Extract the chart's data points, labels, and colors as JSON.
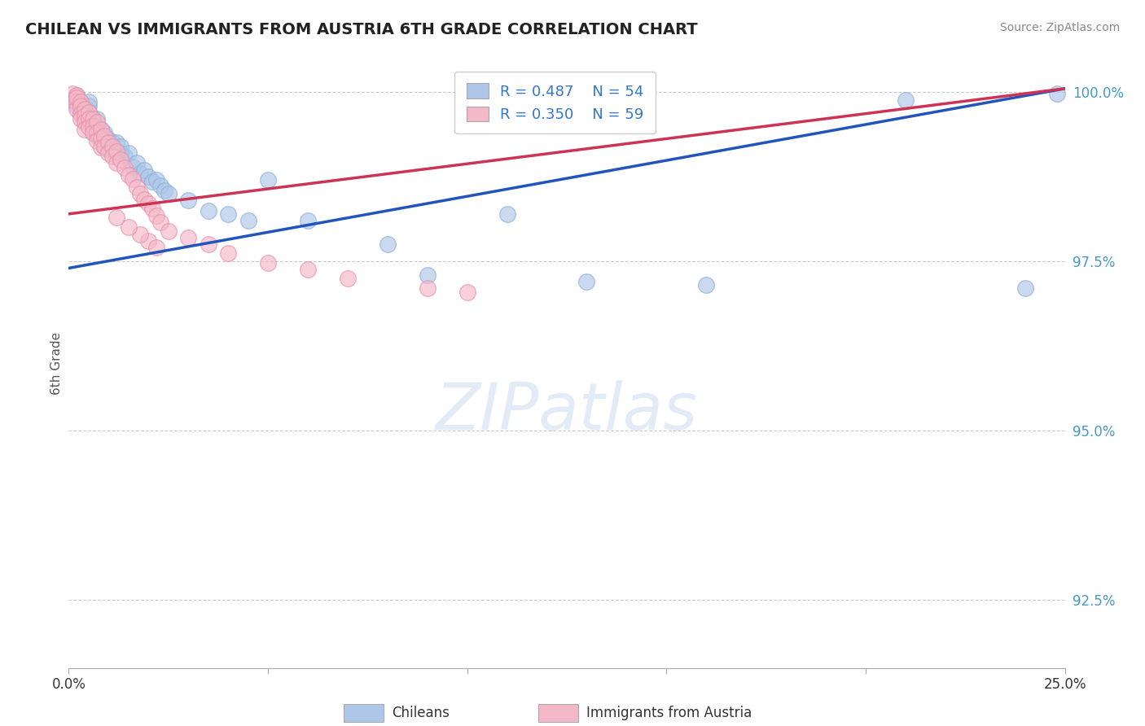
{
  "title": "CHILEAN VS IMMIGRANTS FROM AUSTRIA 6TH GRADE CORRELATION CHART",
  "source": "Source: ZipAtlas.com",
  "ylabel": "6th Grade",
  "xlim": [
    0.0,
    0.25
  ],
  "ylim": [
    0.915,
    1.005
  ],
  "yticks": [
    0.925,
    0.95,
    0.975,
    1.0
  ],
  "ytick_labels": [
    "92.5%",
    "95.0%",
    "97.5%",
    "100.0%"
  ],
  "xticks": [
    0.0,
    0.05,
    0.1,
    0.15,
    0.2,
    0.25
  ],
  "xtick_labels": [
    "0.0%",
    "",
    "",
    "",
    "",
    "25.0%"
  ],
  "blue_R": 0.487,
  "blue_N": 54,
  "pink_R": 0.35,
  "pink_N": 59,
  "blue_color": "#aec6e8",
  "pink_color": "#f4b8c8",
  "blue_line_color": "#2255bb",
  "pink_line_color": "#cc3355",
  "legend_blue_label": "Chileans",
  "legend_pink_label": "Immigrants from Austria",
  "watermark": "ZIPatlas",
  "background_color": "#ffffff",
  "blue_line_x0": 0.0,
  "blue_line_y0": 0.974,
  "blue_line_x1": 0.25,
  "blue_line_y1": 1.0005,
  "pink_line_x0": 0.0,
  "pink_line_y0": 0.982,
  "pink_line_x1": 0.25,
  "pink_line_y1": 1.0005,
  "blue_x": [
    0.002,
    0.002,
    0.003,
    0.003,
    0.003,
    0.004,
    0.004,
    0.004,
    0.005,
    0.005,
    0.005,
    0.006,
    0.006,
    0.006,
    0.007,
    0.007,
    0.007,
    0.008,
    0.008,
    0.009,
    0.009,
    0.01,
    0.01,
    0.011,
    0.012,
    0.012,
    0.013,
    0.013,
    0.014,
    0.015,
    0.016,
    0.017,
    0.018,
    0.019,
    0.02,
    0.021,
    0.022,
    0.023,
    0.024,
    0.025,
    0.03,
    0.035,
    0.04,
    0.045,
    0.05,
    0.06,
    0.08,
    0.09,
    0.11,
    0.13,
    0.16,
    0.21,
    0.24,
    0.248
  ],
  "blue_y": [
    0.998,
    0.9995,
    0.9975,
    0.9985,
    0.997,
    0.9965,
    0.9955,
    0.9975,
    0.998,
    0.9985,
    0.997,
    0.9955,
    0.996,
    0.994,
    0.995,
    0.9935,
    0.996,
    0.9945,
    0.993,
    0.994,
    0.992,
    0.993,
    0.9915,
    0.9925,
    0.991,
    0.9925,
    0.991,
    0.992,
    0.9905,
    0.991,
    0.989,
    0.9895,
    0.988,
    0.9885,
    0.9875,
    0.9868,
    0.987,
    0.9862,
    0.9855,
    0.985,
    0.984,
    0.9825,
    0.982,
    0.981,
    0.987,
    0.981,
    0.9775,
    0.973,
    0.982,
    0.972,
    0.9715,
    0.9988,
    0.971,
    0.9998
  ],
  "pink_x": [
    0.001,
    0.001,
    0.002,
    0.002,
    0.002,
    0.002,
    0.003,
    0.003,
    0.003,
    0.003,
    0.004,
    0.004,
    0.004,
    0.004,
    0.005,
    0.005,
    0.005,
    0.006,
    0.006,
    0.006,
    0.007,
    0.007,
    0.007,
    0.008,
    0.008,
    0.008,
    0.009,
    0.009,
    0.01,
    0.01,
    0.011,
    0.011,
    0.012,
    0.012,
    0.013,
    0.014,
    0.015,
    0.016,
    0.017,
    0.018,
    0.019,
    0.02,
    0.021,
    0.022,
    0.023,
    0.025,
    0.03,
    0.035,
    0.04,
    0.05,
    0.06,
    0.07,
    0.09,
    0.1,
    0.02,
    0.022,
    0.018,
    0.015,
    0.012
  ],
  "pink_y": [
    0.9998,
    0.9988,
    0.9995,
    0.9985,
    0.9975,
    0.9992,
    0.9985,
    0.998,
    0.9968,
    0.996,
    0.9975,
    0.9965,
    0.9955,
    0.9945,
    0.997,
    0.996,
    0.9948,
    0.996,
    0.995,
    0.994,
    0.9955,
    0.994,
    0.9928,
    0.9945,
    0.9932,
    0.9918,
    0.9935,
    0.992,
    0.9925,
    0.991,
    0.992,
    0.9905,
    0.9912,
    0.9895,
    0.99,
    0.9888,
    0.9878,
    0.9872,
    0.986,
    0.985,
    0.9842,
    0.9835,
    0.9828,
    0.9818,
    0.9808,
    0.9795,
    0.9785,
    0.9775,
    0.9762,
    0.9748,
    0.9738,
    0.9725,
    0.971,
    0.9705,
    0.978,
    0.977,
    0.979,
    0.98,
    0.9815
  ]
}
